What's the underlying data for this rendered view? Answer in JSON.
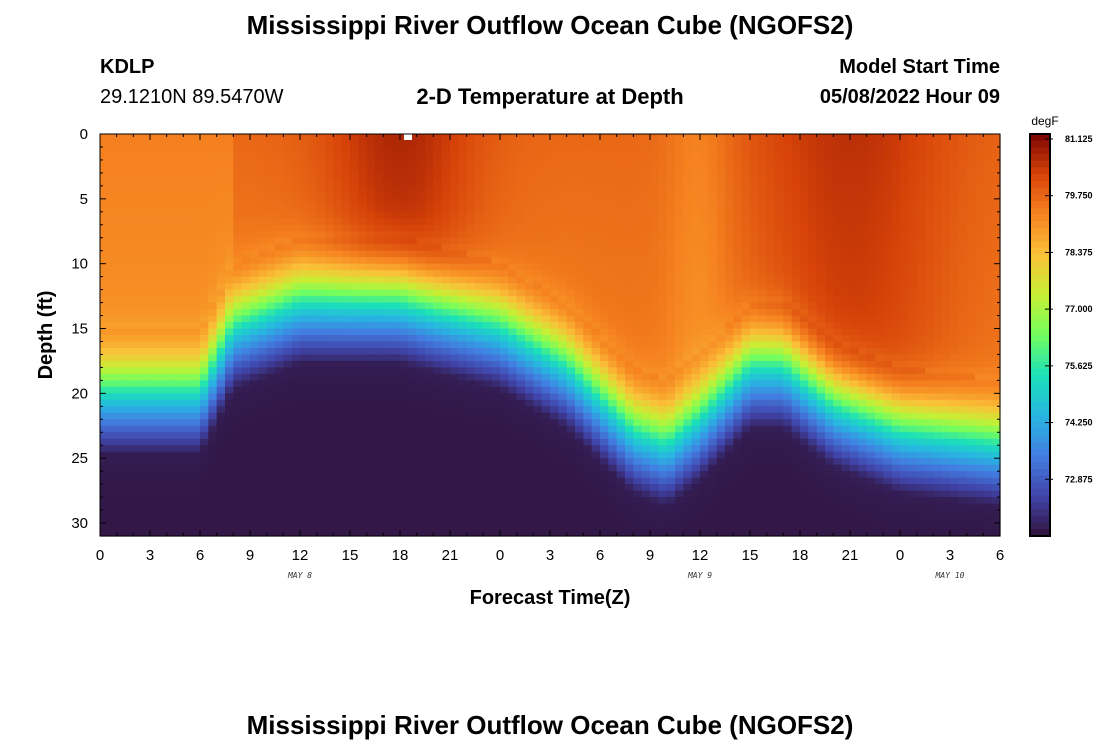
{
  "header": {
    "title": "Mississippi River Outflow Ocean Cube (NGOFS2)",
    "station": "KDLP",
    "coords": "29.1210N  89.5470W",
    "subtitle": "2-D Temperature at Depth",
    "model_start_label": "Model Start Time",
    "model_start_time": "05/08/2022 Hour 09"
  },
  "footer": {
    "title": "Mississippi River Outflow Ocean Cube (NGOFS2)"
  },
  "chart_data": {
    "type": "heatmap",
    "title": "2-D Temperature at Depth",
    "xlabel": "Forecast Time(Z)",
    "ylabel": "Depth (ft)",
    "xlim": [
      0,
      54
    ],
    "ylim": [
      0,
      31
    ],
    "x_tick_labels": [
      "0",
      "3",
      "6",
      "9",
      "12",
      "15",
      "18",
      "21",
      "0",
      "3",
      "6",
      "9",
      "12",
      "15",
      "18",
      "21",
      "0",
      "3",
      "6"
    ],
    "day_labels": [
      {
        "x": 12,
        "label": "MAY 8"
      },
      {
        "x": 36,
        "label": "MAY 9"
      },
      {
        "x": 51,
        "label": "MAY 10"
      }
    ],
    "y_ticks": [
      0,
      5,
      10,
      15,
      20,
      25,
      30
    ],
    "colorbar": {
      "unit": "degF",
      "min": 71.5,
      "max": 81.125,
      "tick_values": [
        81.125,
        79.75,
        78.375,
        77.0,
        75.625,
        74.25,
        72.875
      ],
      "tick_labels": [
        "81.125",
        "79.750",
        "78.375",
        "77.000",
        "75.625",
        "74.250",
        "72.875"
      ]
    },
    "thermocline_depth_ft_by_hour": [
      {
        "x": 0,
        "depth": 18
      },
      {
        "x": 6,
        "depth": 18
      },
      {
        "x": 8,
        "depth": 13
      },
      {
        "x": 12,
        "depth": 11
      },
      {
        "x": 18,
        "depth": 11
      },
      {
        "x": 24,
        "depth": 13
      },
      {
        "x": 28,
        "depth": 16
      },
      {
        "x": 32,
        "depth": 21
      },
      {
        "x": 34,
        "depth": 22
      },
      {
        "x": 36,
        "depth": 20
      },
      {
        "x": 39,
        "depth": 16
      },
      {
        "x": 41,
        "depth": 16
      },
      {
        "x": 44,
        "depth": 19
      },
      {
        "x": 48,
        "depth": 21
      },
      {
        "x": 54,
        "depth": 22
      }
    ]
  }
}
